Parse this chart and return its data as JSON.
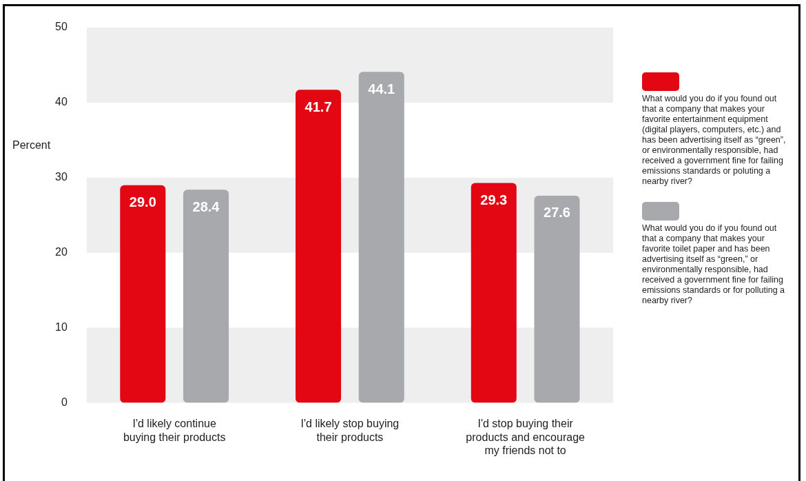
{
  "chart_data": {
    "type": "bar",
    "ylabel": "Percent",
    "categories": [
      "I'd likely continue buying their products",
      "I'd likely stop buying their products",
      "I'd stop buying their products and encourage my friends not to"
    ],
    "series": [
      {
        "name": "What would you do if you found out that a company that makes your favorite entertainment equipment (digital players, computers, etc.) and has been advertising itself as “green”, or environmentally responsible, had received a government fine for failing emissions standards or poluting a nearby river?",
        "color": "#e30613",
        "values": [
          29.0,
          41.7,
          29.3
        ],
        "value_labels": [
          "29.0",
          "41.7",
          "29.3"
        ]
      },
      {
        "name": "What would you do if you found out that a company that makes your favorite toilet paper and has been advertising itself as “green,” or environmentally responsible, had received a government fine for failing emissions standards or for polluting a nearby river?",
        "color": "#a7a9ac",
        "values": [
          28.4,
          44.1,
          27.6
        ],
        "value_labels": [
          "28.4",
          "44.1",
          "27.6"
        ]
      }
    ],
    "ylim": [
      0,
      50
    ],
    "yticks": [
      0,
      10,
      20,
      30,
      40,
      50
    ],
    "bands": [
      {
        "axis": "y",
        "from": 0,
        "to": 10,
        "color": "#eeeeee"
      },
      {
        "axis": "y",
        "from": 20,
        "to": 30,
        "color": "#eeeeee"
      },
      {
        "axis": "y",
        "from": 40,
        "to": 50,
        "color": "#eeeeee"
      }
    ],
    "legend": "right"
  }
}
